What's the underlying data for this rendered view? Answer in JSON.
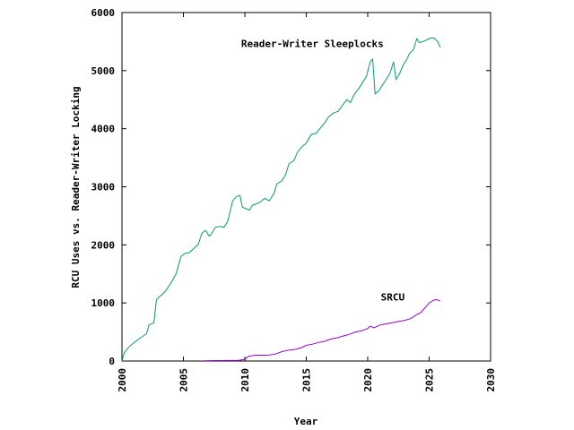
{
  "chart_data": {
    "type": "line",
    "title": "",
    "xlabel": "Year",
    "ylabel": "RCU Uses vs. Reader-Writer Locking",
    "xlim": [
      2000,
      2030
    ],
    "ylim": [
      0,
      6000
    ],
    "xticks": [
      2000,
      2005,
      2010,
      2015,
      2020,
      2025,
      2030
    ],
    "yticks": [
      0,
      1000,
      2000,
      3000,
      4000,
      5000,
      6000
    ],
    "grid": false,
    "series": [
      {
        "name": "Reader-Writer Sleeplocks",
        "color": "#009e73",
        "x": [
          2000.0,
          2000.2,
          2000.6,
          2001.0,
          2001.5,
          2002.0,
          2002.2,
          2002.6,
          2002.8,
          2003.0,
          2003.3,
          2003.6,
          2004.0,
          2004.4,
          2004.8,
          2005.1,
          2005.5,
          2005.9,
          2006.2,
          2006.5,
          2006.8,
          2007.1,
          2007.3,
          2007.6,
          2008.0,
          2008.3,
          2008.6,
          2009.0,
          2009.3,
          2009.6,
          2009.8,
          2010.1,
          2010.4,
          2010.6,
          2010.9,
          2011.2,
          2011.6,
          2012.0,
          2012.4,
          2012.6,
          2013.0,
          2013.3,
          2013.6,
          2014.0,
          2014.3,
          2014.7,
          2015.0,
          2015.4,
          2015.8,
          2016.1,
          2016.5,
          2016.8,
          2017.2,
          2017.6,
          2018.0,
          2018.3,
          2018.6,
          2018.8,
          2019.0,
          2019.3,
          2019.6,
          2019.9,
          2020.2,
          2020.4,
          2020.6,
          2020.9,
          2021.2,
          2021.5,
          2021.8,
          2022.1,
          2022.3,
          2022.6,
          2022.9,
          2023.2,
          2023.4,
          2023.7,
          2024.0,
          2024.2,
          2024.5,
          2024.8,
          2025.1,
          2025.4,
          2025.7,
          2025.9
        ],
        "y": [
          0,
          150,
          250,
          320,
          400,
          470,
          620,
          660,
          1050,
          1100,
          1150,
          1220,
          1350,
          1500,
          1800,
          1850,
          1870,
          1950,
          2000,
          2200,
          2250,
          2150,
          2200,
          2300,
          2320,
          2300,
          2400,
          2750,
          2830,
          2850,
          2650,
          2620,
          2600,
          2680,
          2700,
          2730,
          2800,
          2760,
          2900,
          3050,
          3100,
          3200,
          3400,
          3450,
          3600,
          3700,
          3750,
          3900,
          3920,
          4000,
          4100,
          4200,
          4270,
          4300,
          4420,
          4500,
          4450,
          4550,
          4620,
          4700,
          4800,
          4900,
          5150,
          5200,
          4600,
          4650,
          4750,
          4850,
          4950,
          5150,
          4850,
          4950,
          5100,
          5200,
          5300,
          5350,
          5550,
          5480,
          5500,
          5530,
          5560,
          5560,
          5500,
          5400
        ]
      },
      {
        "name": "SRCU",
        "color": "#9400d3",
        "x": [
          2006.7,
          2007.5,
          2008.5,
          2009.5,
          2010.0,
          2010.3,
          2010.8,
          2011.5,
          2012.0,
          2012.5,
          2013.0,
          2013.6,
          2014.1,
          2014.6,
          2015.0,
          2015.5,
          2016.0,
          2016.5,
          2017.0,
          2017.5,
          2018.0,
          2018.5,
          2019.0,
          2019.5,
          2020.0,
          2020.2,
          2020.5,
          2021.0,
          2021.5,
          2022.0,
          2022.5,
          2023.0,
          2023.5,
          2024.0,
          2024.3,
          2024.6,
          2025.0,
          2025.3,
          2025.6,
          2025.9
        ],
        "y": [
          5,
          8,
          10,
          12,
          30,
          80,
          100,
          100,
          105,
          120,
          160,
          190,
          200,
          230,
          270,
          290,
          320,
          340,
          380,
          400,
          430,
          460,
          500,
          520,
          560,
          600,
          570,
          620,
          640,
          660,
          680,
          700,
          730,
          800,
          830,
          900,
          1000,
          1040,
          1060,
          1030
        ]
      }
    ],
    "annotations": [
      {
        "text": "Reader-Writer Sleeplocks",
        "x": 2021.3,
        "y": 5410
      },
      {
        "text": "SRCU",
        "x": 2023.0,
        "y": 1040
      }
    ]
  }
}
